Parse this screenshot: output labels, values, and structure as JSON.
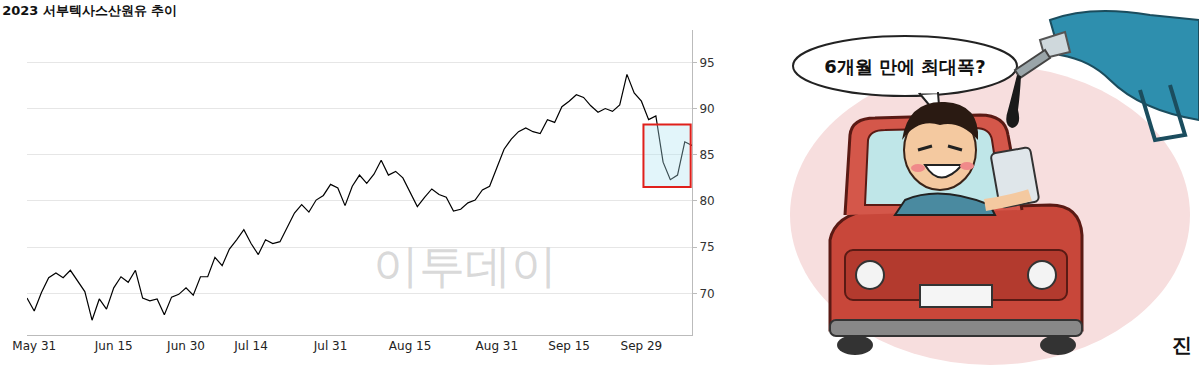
{
  "chart_data": {
    "type": "line",
    "title": "2023 서부텍사스산원유 추이",
    "categories": [
      null,
      "May 31",
      null,
      null,
      null,
      null,
      null,
      null,
      null,
      null,
      null,
      null,
      "Jun 15",
      null,
      null,
      null,
      null,
      null,
      null,
      null,
      null,
      null,
      "Jun 30",
      null,
      null,
      null,
      null,
      null,
      null,
      null,
      null,
      "Jul 14",
      null,
      null,
      null,
      null,
      null,
      null,
      null,
      null,
      null,
      null,
      "Jul 31",
      null,
      null,
      null,
      null,
      null,
      null,
      null,
      null,
      null,
      null,
      "Aug 15",
      null,
      null,
      null,
      null,
      null,
      null,
      null,
      null,
      null,
      null,
      null,
      "Aug 31",
      null,
      null,
      null,
      null,
      null,
      null,
      null,
      null,
      null,
      "Sep 15",
      null,
      null,
      null,
      null,
      null,
      null,
      null,
      null,
      null,
      "Sep 29",
      null,
      null,
      null,
      null,
      null,
      null,
      null
    ],
    "values": [
      69.5,
      68.1,
      70.1,
      71.7,
      72.2,
      71.7,
      72.5,
      71.3,
      70.2,
      67.1,
      69.4,
      68.3,
      70.6,
      71.8,
      71.2,
      72.5,
      69.5,
      69.2,
      69.4,
      67.7,
      69.6,
      69.9,
      70.6,
      69.8,
      71.8,
      71.8,
      73.9,
      73.0,
      74.8,
      75.8,
      76.9,
      75.4,
      74.2,
      75.8,
      75.4,
      75.6,
      77.1,
      78.7,
      79.6,
      78.8,
      80.1,
      80.6,
      81.8,
      81.4,
      79.5,
      81.6,
      82.8,
      81.9,
      82.9,
      84.4,
      82.8,
      83.2,
      82.5,
      81.0,
      79.4,
      80.4,
      81.3,
      80.7,
      80.4,
      78.9,
      79.1,
      79.8,
      80.1,
      81.2,
      81.6,
      83.6,
      85.6,
      86.7,
      87.5,
      87.9,
      87.5,
      87.3,
      88.8,
      88.5,
      90.2,
      90.8,
      91.5,
      91.2,
      90.3,
      89.6,
      90.0,
      89.7,
      90.4,
      93.7,
      91.7,
      90.8,
      88.8,
      89.2,
      84.2,
      82.3,
      82.8,
      86.4,
      86.0
    ],
    "color": "#000000",
    "ylim": [
      65.5,
      98.5
    ],
    "yticks": [
      70,
      75,
      80,
      85,
      90,
      95
    ],
    "grid": true
  },
  "watermark": "이투데이",
  "cartoon": {
    "speech": "6개월 만에 최대폭?",
    "signature": "진"
  }
}
